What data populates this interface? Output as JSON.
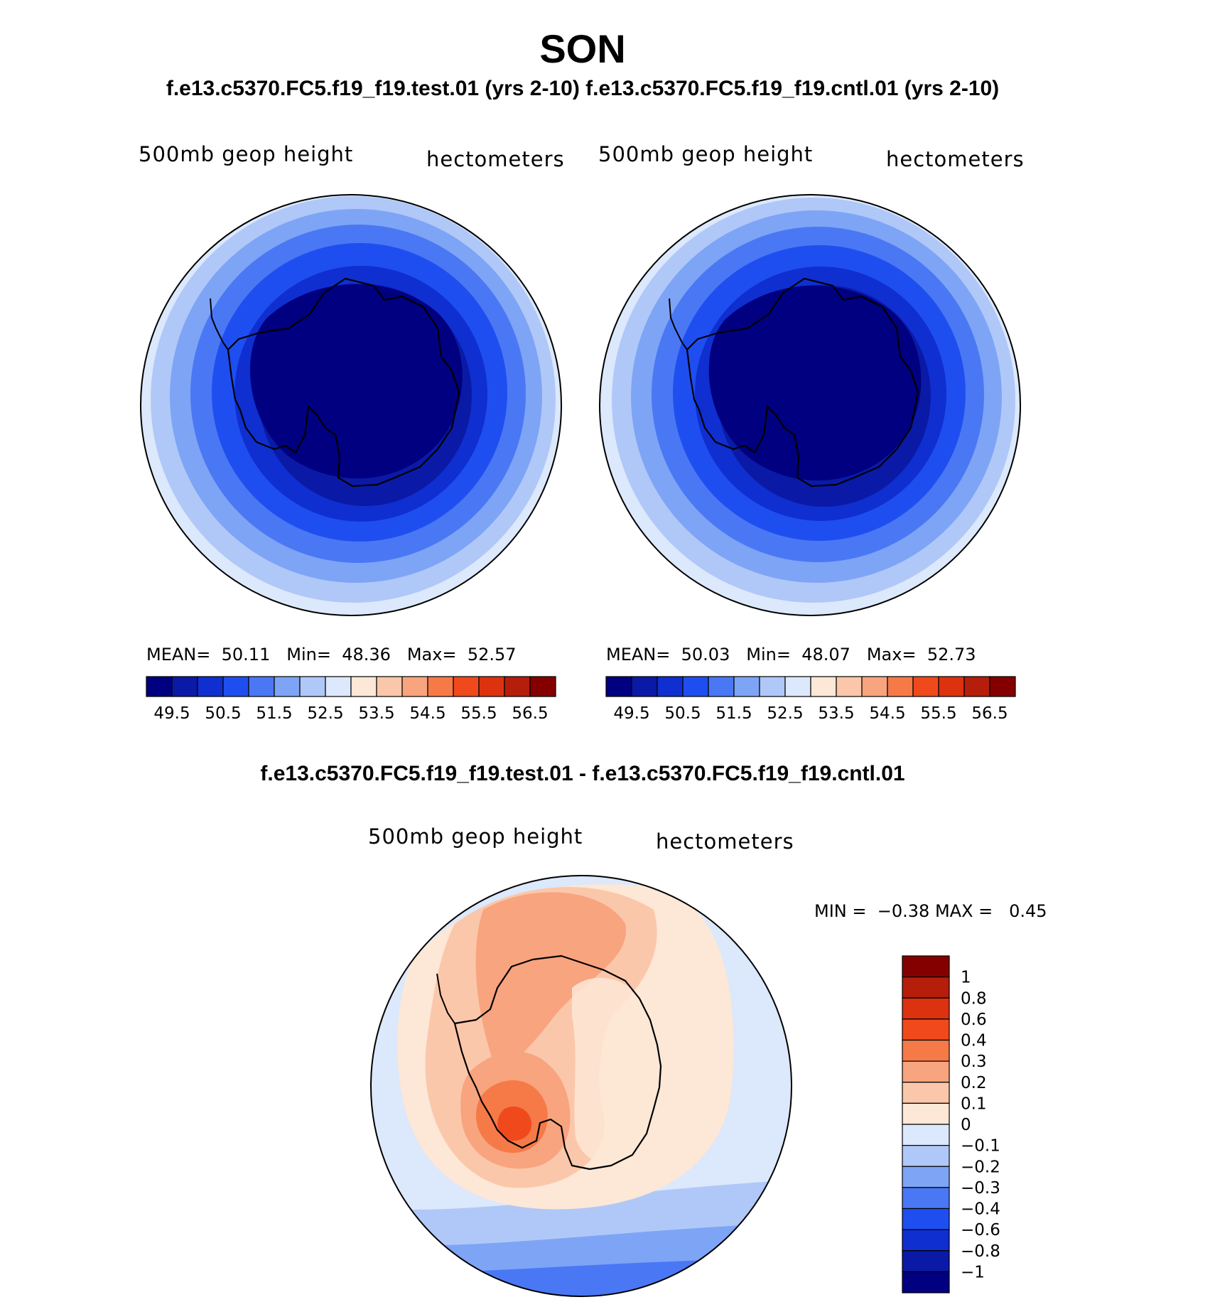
{
  "figure": {
    "title": "SON",
    "subtitle": "f.e13.c5370.FC5.f19_f19.test.01 (yrs 2-10) f.e13.c5370.FC5.f19_f19.cntl.01 (yrs 2-10)"
  },
  "panels": [
    {
      "variable": "500mb geop height",
      "units": "hectometers",
      "stats": {
        "mean_label": "MEAN=",
        "mean": "50.11",
        "min_label": "Min=",
        "min": "48.36",
        "max_label": "Max=",
        "max": "52.57"
      }
    },
    {
      "variable": "500mb geop height",
      "units": "hectometers",
      "stats": {
        "mean_label": "MEAN=",
        "mean": "50.03",
        "min_label": "Min=",
        "min": "48.07",
        "max_label": "Max=",
        "max": "52.73"
      }
    }
  ],
  "colorbar_top": {
    "colors": [
      "#000080",
      "#0a1aa6",
      "#0f2fd0",
      "#1f4ef0",
      "#4a78f4",
      "#7ea4f6",
      "#b0c8f8",
      "#dce8fb",
      "#fde7d6",
      "#fbc7aa",
      "#f8a47e",
      "#f57a48",
      "#f04a1c",
      "#dc3210",
      "#b41e0a",
      "#840000"
    ],
    "labels": [
      "49.5",
      "50.5",
      "51.5",
      "52.5",
      "53.5",
      "54.5",
      "55.5",
      "56.5"
    ]
  },
  "difference": {
    "title": "f.e13.c5370.FC5.f19_f19.test.01 - f.e13.c5370.FC5.f19_f19.cntl.01",
    "variable": "500mb geop height",
    "units": "hectometers",
    "minmax": {
      "min_label": "MIN =",
      "min": "−0.38",
      "max_label": "MAX =",
      "max": "0.45"
    },
    "colorbar": {
      "colors": [
        "#840000",
        "#b41e0a",
        "#dc3210",
        "#f04a1c",
        "#f57a48",
        "#f8a47e",
        "#fbc7aa",
        "#fde7d6",
        "#dce8fb",
        "#b0c8f8",
        "#7ea4f6",
        "#4a78f4",
        "#1f4ef0",
        "#0f2fd0",
        "#0a1aa6",
        "#000080"
      ],
      "labels": [
        "1",
        "0.8",
        "0.6",
        "0.4",
        "0.3",
        "0.2",
        "0.1",
        "0",
        "−0.1",
        "−0.2",
        "−0.3",
        "−0.4",
        "−0.6",
        "−0.8",
        "−1"
      ]
    }
  }
}
